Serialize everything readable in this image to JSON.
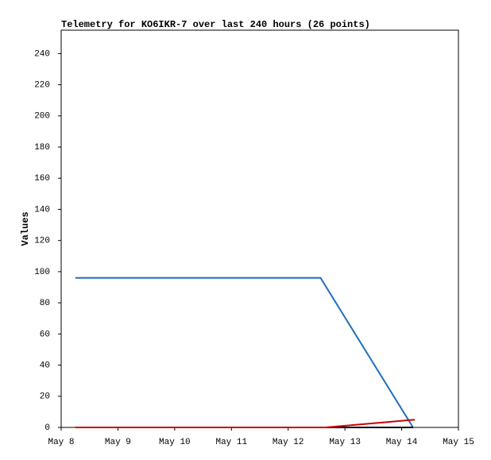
{
  "chart_data": {
    "type": "line",
    "title": "Telemetry for KO6IKR-7 over last 240 hours (26 points)",
    "y_label": "Values",
    "xlim": [
      8,
      15
    ],
    "xticks": [
      {
        "value": 8,
        "label": "May 8"
      },
      {
        "value": 9,
        "label": "May 9"
      },
      {
        "value": 10,
        "label": "May 10"
      },
      {
        "value": 11,
        "label": "May 11"
      },
      {
        "value": 12,
        "label": "May 12"
      },
      {
        "value": 13,
        "label": "May 13"
      },
      {
        "value": 14,
        "label": "May 14"
      },
      {
        "value": 15,
        "label": "May 15"
      }
    ],
    "ylim": [
      0,
      255
    ],
    "yticks": [
      0,
      20,
      40,
      60,
      80,
      100,
      120,
      140,
      160,
      180,
      200,
      220,
      240
    ],
    "series": [
      {
        "color": "#1f6fbf",
        "x": [
          8.25,
          12.57,
          14.2
        ],
        "values": [
          96,
          96,
          0
        ]
      },
      {
        "color": "#000000",
        "x": [
          8.25,
          12.57,
          14.2
        ],
        "values": [
          0,
          0,
          0
        ]
      },
      {
        "color": "#cc0000",
        "x": [
          8.25,
          12.66,
          14.23
        ],
        "values": [
          0,
          0,
          5
        ]
      }
    ]
  }
}
